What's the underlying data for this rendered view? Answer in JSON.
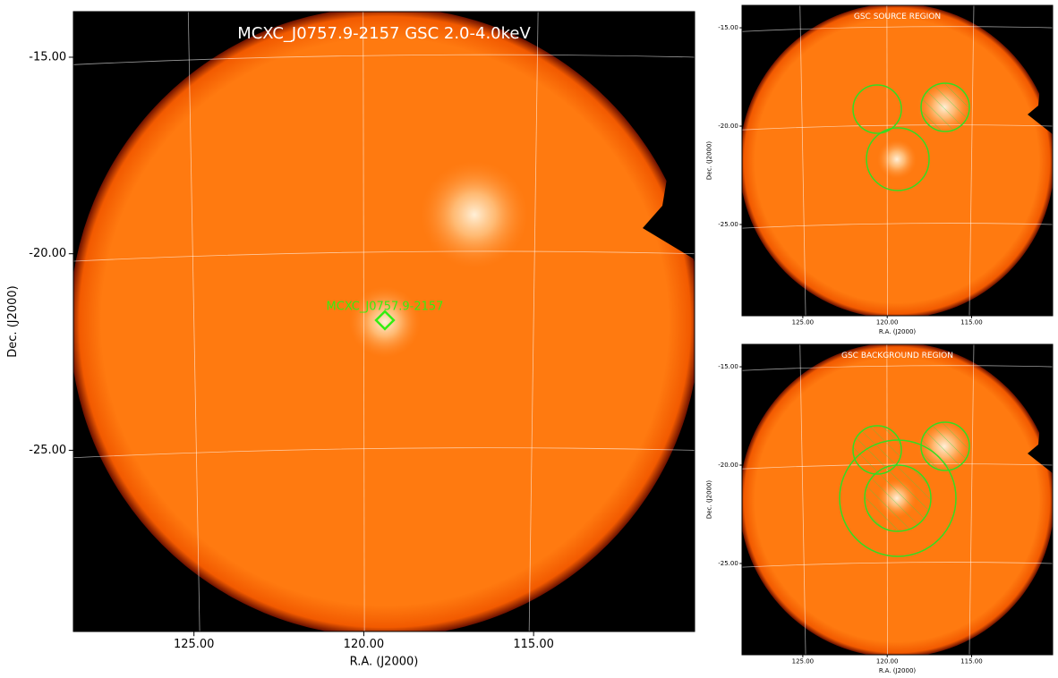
{
  "chart_data": [
    {
      "type": "image",
      "title": "MCXC_J0757.9-2157 GSC 2.0-4.0keV",
      "xlabel": "R.A. (J2000)",
      "ylabel": "Dec. (J2000)",
      "annotation": "MCXC_J0757.9-2157",
      "xlim": [
        128.55,
        110.26
      ],
      "ylim": [
        -29.61,
        -13.84
      ],
      "xticks": [
        {
          "value": 125,
          "label": "125.00"
        },
        {
          "value": 120,
          "label": "120.00"
        },
        {
          "value": 115,
          "label": "115.00"
        }
      ],
      "yticks": [
        {
          "value": -15,
          "label": "-15.00"
        },
        {
          "value": -20,
          "label": "-20.00"
        },
        {
          "value": -25,
          "label": "-25.00"
        }
      ],
      "grid": true
    },
    {
      "type": "image",
      "title": "GSC SOURCE REGION",
      "xlabel": "R.A. (J2000)",
      "ylabel": "Dec. (J2000)",
      "xlim": [
        128.6,
        110.2
      ],
      "ylim": [
        -29.64,
        -13.86
      ],
      "xticks": [
        {
          "value": 125,
          "label": "125.00"
        },
        {
          "value": 120,
          "label": "120.00"
        },
        {
          "value": 115,
          "label": "115.00"
        }
      ],
      "yticks": [
        {
          "value": -15,
          "label": "-15.00"
        },
        {
          "value": -20,
          "label": "-20.00"
        },
        {
          "value": -25,
          "label": "-25.00"
        }
      ],
      "grid": true
    },
    {
      "type": "image",
      "title": "GSC BACKGROUND REGION",
      "xlabel": "R.A. (J2000)",
      "ylabel": "Dec. (J2000)",
      "xlim": [
        128.6,
        110.2
      ],
      "ylim": [
        -29.64,
        -13.86
      ],
      "xticks": [
        {
          "value": 125,
          "label": "125.00"
        },
        {
          "value": 120,
          "label": "120.00"
        },
        {
          "value": 115,
          "label": "115.00"
        }
      ],
      "yticks": [
        {
          "value": -15,
          "label": "-15.00"
        },
        {
          "value": -20,
          "label": "-20.00"
        },
        {
          "value": -25,
          "label": "-25.00"
        }
      ],
      "grid": true
    }
  ]
}
